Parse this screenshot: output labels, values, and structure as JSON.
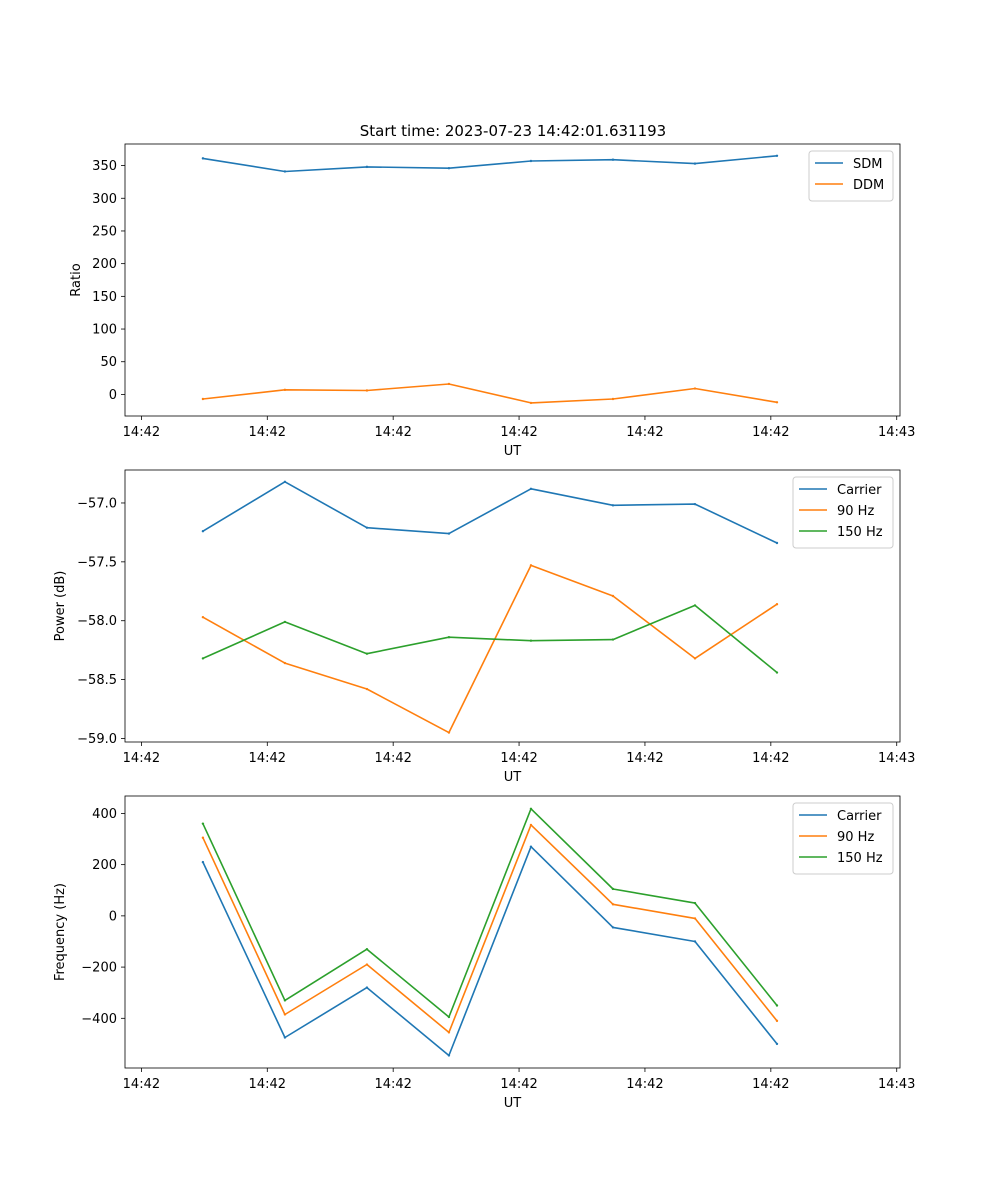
{
  "figure": {
    "title": "Start time: 2023-07-23 14:42:01.631193"
  },
  "colors": {
    "blue": "#1f77b4",
    "orange": "#ff7f0e",
    "green": "#2ca02c"
  },
  "chart_data": [
    {
      "type": "line",
      "title": "Start time: 2023-07-23 14:42:01.631193",
      "xlabel": "UT",
      "ylabel": "Ratio",
      "x_index": [
        0,
        1,
        2,
        3,
        4,
        5,
        6,
        7
      ],
      "x_ticks": [
        {
          "pos": -0.75,
          "label": "14:42"
        },
        {
          "pos": 0.785,
          "label": "14:42"
        },
        {
          "pos": 2.32,
          "label": "14:42"
        },
        {
          "pos": 3.855,
          "label": "14:42"
        },
        {
          "pos": 5.39,
          "label": "14:42"
        },
        {
          "pos": 6.925,
          "label": "14:42"
        },
        {
          "pos": 8.46,
          "label": "14:43"
        }
      ],
      "xlim": [
        -0.95,
        8.5
      ],
      "ylim": [
        -33,
        383
      ],
      "yticks": [
        0,
        50,
        100,
        150,
        200,
        250,
        300,
        350
      ],
      "legend_position": "top-right",
      "series": [
        {
          "name": "SDM",
          "color": "#1f77b4",
          "values": [
            361,
            341,
            348,
            346,
            357,
            359,
            353,
            365
          ]
        },
        {
          "name": "DDM",
          "color": "#ff7f0e",
          "values": [
            -7,
            7,
            6,
            16,
            -13,
            -7,
            9,
            -12
          ]
        }
      ]
    },
    {
      "type": "line",
      "xlabel": "UT",
      "ylabel": "Power (dB)",
      "x_index": [
        0,
        1,
        2,
        3,
        4,
        5,
        6,
        7
      ],
      "x_ticks": [
        {
          "pos": -0.75,
          "label": "14:42"
        },
        {
          "pos": 0.785,
          "label": "14:42"
        },
        {
          "pos": 2.32,
          "label": "14:42"
        },
        {
          "pos": 3.855,
          "label": "14:42"
        },
        {
          "pos": 5.39,
          "label": "14:42"
        },
        {
          "pos": 6.925,
          "label": "14:42"
        },
        {
          "pos": 8.46,
          "label": "14:43"
        }
      ],
      "xlim": [
        -0.95,
        8.5
      ],
      "ylim": [
        -59.03,
        -56.72
      ],
      "yticks": [
        -59.0,
        -58.5,
        -58.0,
        -57.5,
        -57.0
      ],
      "ytick_labels": [
        "−59.0",
        "−58.5",
        "−58.0",
        "−57.5",
        "−57.0"
      ],
      "legend_position": "top-right",
      "series": [
        {
          "name": "Carrier",
          "color": "#1f77b4",
          "values": [
            -57.24,
            -56.82,
            -57.21,
            -57.26,
            -56.88,
            -57.02,
            -57.01,
            -57.34
          ]
        },
        {
          "name": "90 Hz",
          "color": "#ff7f0e",
          "values": [
            -57.97,
            -58.36,
            -58.58,
            -58.95,
            -57.53,
            -57.79,
            -58.32,
            -57.86
          ]
        },
        {
          "name": "150 Hz",
          "color": "#2ca02c",
          "values": [
            -58.32,
            -58.01,
            -58.28,
            -58.14,
            -58.17,
            -58.16,
            -57.87,
            -58.44
          ]
        }
      ]
    },
    {
      "type": "line",
      "xlabel": "UT",
      "ylabel": "Frequency (Hz)",
      "x_index": [
        0,
        1,
        2,
        3,
        4,
        5,
        6,
        7
      ],
      "x_ticks": [
        {
          "pos": -0.75,
          "label": "14:42"
        },
        {
          "pos": 0.785,
          "label": "14:42"
        },
        {
          "pos": 2.32,
          "label": "14:42"
        },
        {
          "pos": 3.855,
          "label": "14:42"
        },
        {
          "pos": 5.39,
          "label": "14:42"
        },
        {
          "pos": 6.925,
          "label": "14:42"
        },
        {
          "pos": 8.46,
          "label": "14:43"
        }
      ],
      "xlim": [
        -0.95,
        8.5
      ],
      "ylim": [
        -594,
        468
      ],
      "yticks": [
        -400,
        -200,
        0,
        200,
        400
      ],
      "ytick_labels": [
        "−400",
        "−200",
        "0",
        "200",
        "400"
      ],
      "legend_position": "top-right",
      "series": [
        {
          "name": "Carrier",
          "color": "#1f77b4",
          "values": [
            210,
            -475,
            -280,
            -545,
            270,
            -45,
            -100,
            -500
          ]
        },
        {
          "name": "90 Hz",
          "color": "#ff7f0e",
          "values": [
            305,
            -385,
            -190,
            -455,
            355,
            45,
            -10,
            -410
          ]
        },
        {
          "name": "150 Hz",
          "color": "#2ca02c",
          "values": [
            360,
            -330,
            -130,
            -395,
            418,
            105,
            50,
            -350
          ]
        }
      ]
    }
  ]
}
